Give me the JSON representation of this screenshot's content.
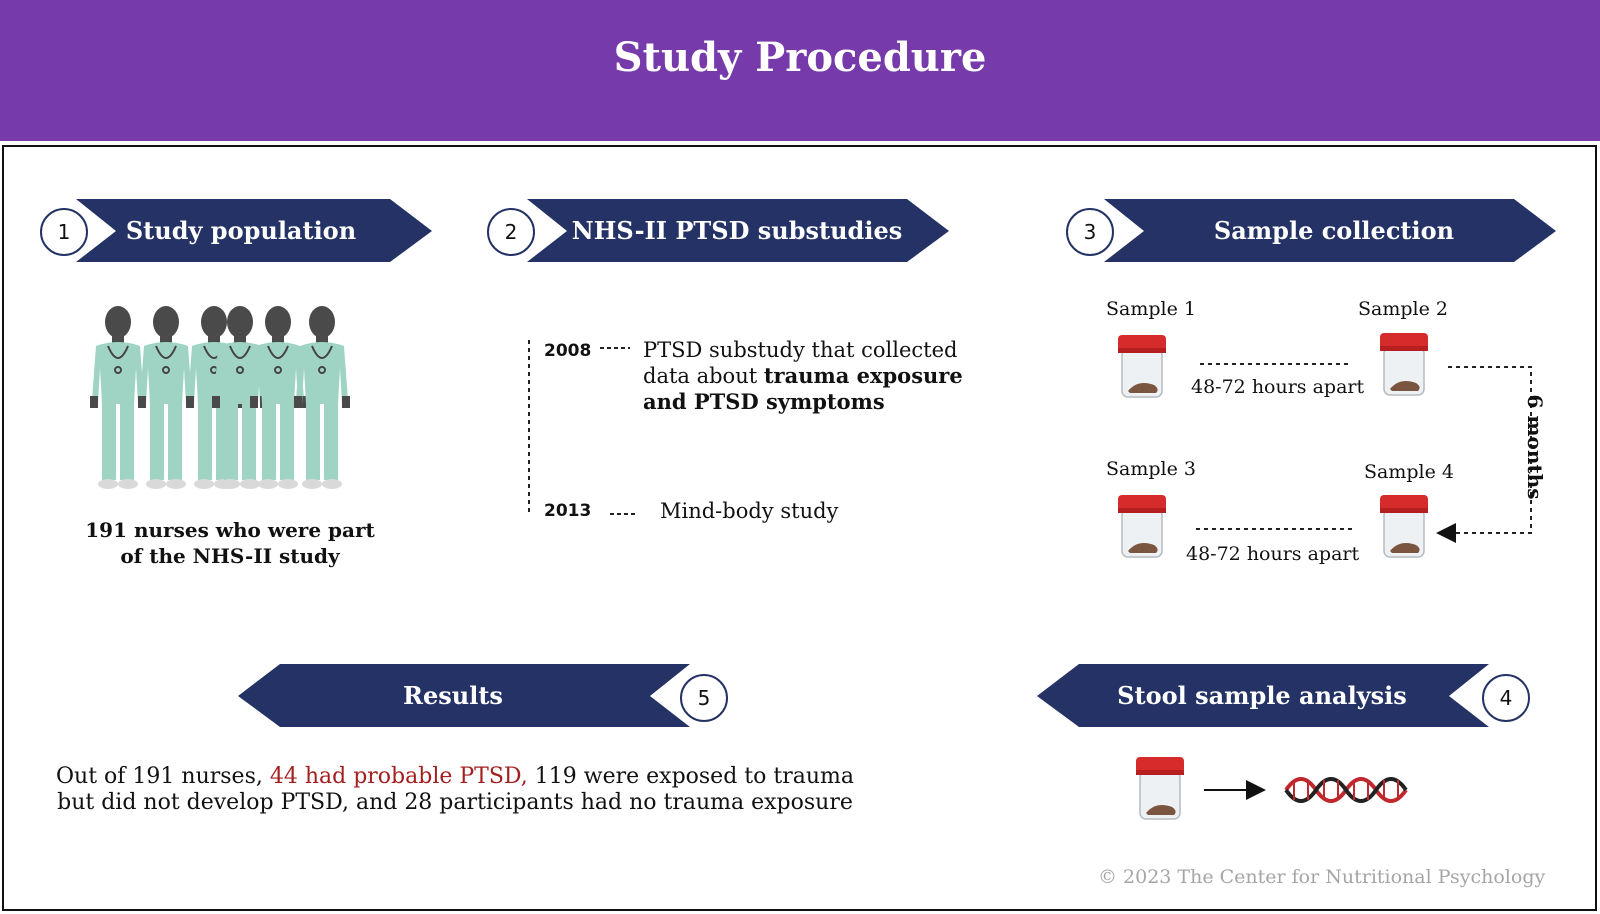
{
  "header": {
    "title": "Study Procedure",
    "color": "#763aab"
  },
  "steps": [
    {
      "number": "1",
      "label": "Study population"
    },
    {
      "number": "2",
      "label": "NHS-II PTSD substudies"
    },
    {
      "number": "3",
      "label": "Sample collection"
    },
    {
      "number": "4",
      "label": "Stool sample analysis"
    },
    {
      "number": "5",
      "label": "Results"
    }
  ],
  "population": {
    "caption_line1": "191 nurses who were part",
    "caption_line2": "of the NHS-II study"
  },
  "timeline": [
    {
      "year": "2008",
      "text_line1": "PTSD substudy that collected",
      "text_line2_plain": "data about ",
      "text_line2_bold": "trauma exposure",
      "text_line3_bold": "and PTSD symptoms"
    },
    {
      "year": "2013",
      "text": "Mind-body study"
    }
  ],
  "samples": {
    "labels": [
      "Sample 1",
      "Sample 2",
      "Sample 3",
      "Sample 4"
    ],
    "interval": "48-72 hours apart",
    "interval2": "48-72 hours apart",
    "gap": "6 months"
  },
  "results": {
    "part1": "Out of 191 nurses, ",
    "highlight": "44 had probable PTSD,",
    "part2": " 119 were exposed to trauma",
    "line2": "but did not develop PTSD, and 28 participants had no trauma exposure"
  },
  "footer": {
    "copyright": "© 2023 The Center for Nutritional Psychology"
  },
  "colors": {
    "banner": "#243266",
    "highlight": "#a31e1e",
    "scrubs": "#9fd4c4",
    "jar_lid": "#d62b2b"
  },
  "icons": [
    "nurse-group-icon",
    "sample-jar-icon",
    "dna-icon",
    "arrow-icon"
  ]
}
